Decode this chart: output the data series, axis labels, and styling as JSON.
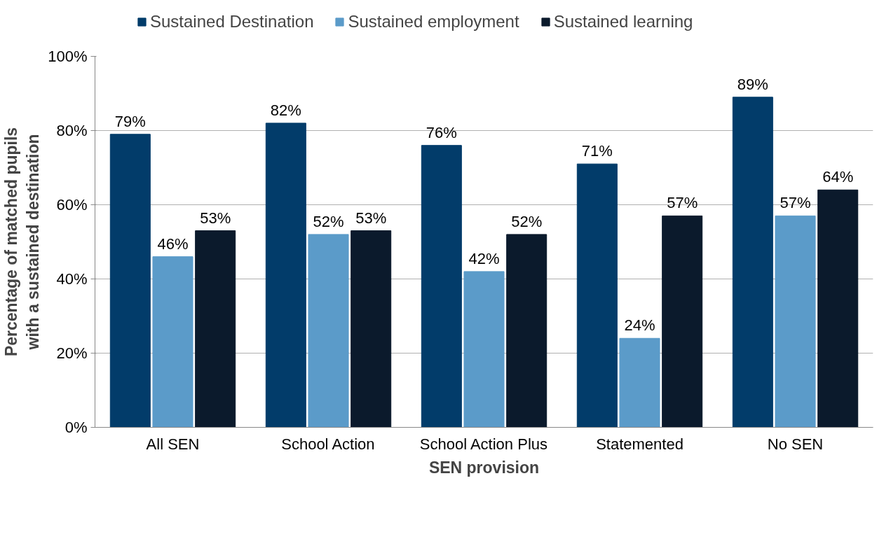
{
  "chart_data": {
    "type": "bar",
    "xlabel": "SEN provision",
    "ylabel": "Percentage of matched pupils with a sustained destination",
    "categories": [
      "All SEN",
      "School Action",
      "School Action Plus",
      "Statemented",
      "No SEN"
    ],
    "series": [
      {
        "name": "Sustained Destination",
        "color": "#023c6a",
        "values": [
          79,
          82,
          76,
          71,
          89
        ],
        "value_labels": [
          "79%",
          "82%",
          "76%",
          "71%",
          "89%"
        ]
      },
      {
        "name": "Sustained employment",
        "color": "#5b9bc9",
        "values": [
          46,
          52,
          42,
          24,
          57
        ],
        "value_labels": [
          "46%",
          "52%",
          "42%",
          "24%",
          "57%"
        ]
      },
      {
        "name": "Sustained learning",
        "color": "#0b1a2c",
        "values": [
          53,
          53,
          52,
          57,
          64
        ],
        "value_labels": [
          "53%",
          "53%",
          "52%",
          "57%",
          "64%"
        ]
      }
    ],
    "ylim": [
      0,
      100
    ],
    "yticks": [
      {
        "value": 0,
        "label": "0%"
      },
      {
        "value": 20,
        "label": "20%"
      },
      {
        "value": 40,
        "label": "40%"
      },
      {
        "value": 60,
        "label": "60%"
      },
      {
        "value": 80,
        "label": "80%"
      },
      {
        "value": 100,
        "label": "100%"
      }
    ],
    "grid": "y",
    "legend": "top"
  }
}
